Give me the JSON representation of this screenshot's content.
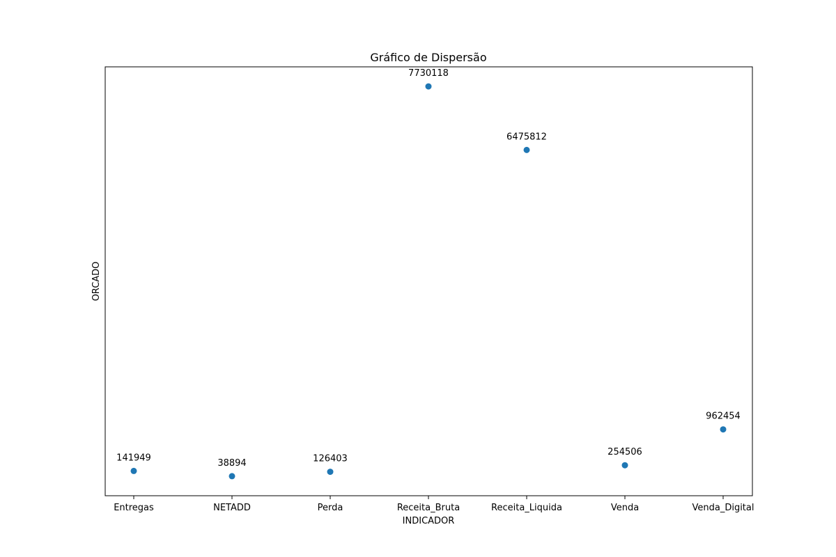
{
  "chart_data": {
    "type": "scatter",
    "title": "Gráfico de Dispersão",
    "xlabel": "INDICADOR",
    "ylabel": "ORCADO",
    "categories": [
      "Entregas",
      "NETADD",
      "Perda",
      "Receita_Bruta",
      "Receita_Liquida",
      "Venda",
      "Venda_Digital"
    ],
    "values": [
      141949,
      38894,
      126403,
      7730118,
      6475812,
      254506,
      962454
    ],
    "data_labels": [
      "141949",
      "38894",
      "126403",
      "7730118",
      "6475812",
      "254506",
      "962454"
    ],
    "ylim": [
      -346667,
      8115680
    ],
    "y_ticks_visible": false,
    "grid": false,
    "legend": "none",
    "marker_color": "#1f77b4"
  }
}
